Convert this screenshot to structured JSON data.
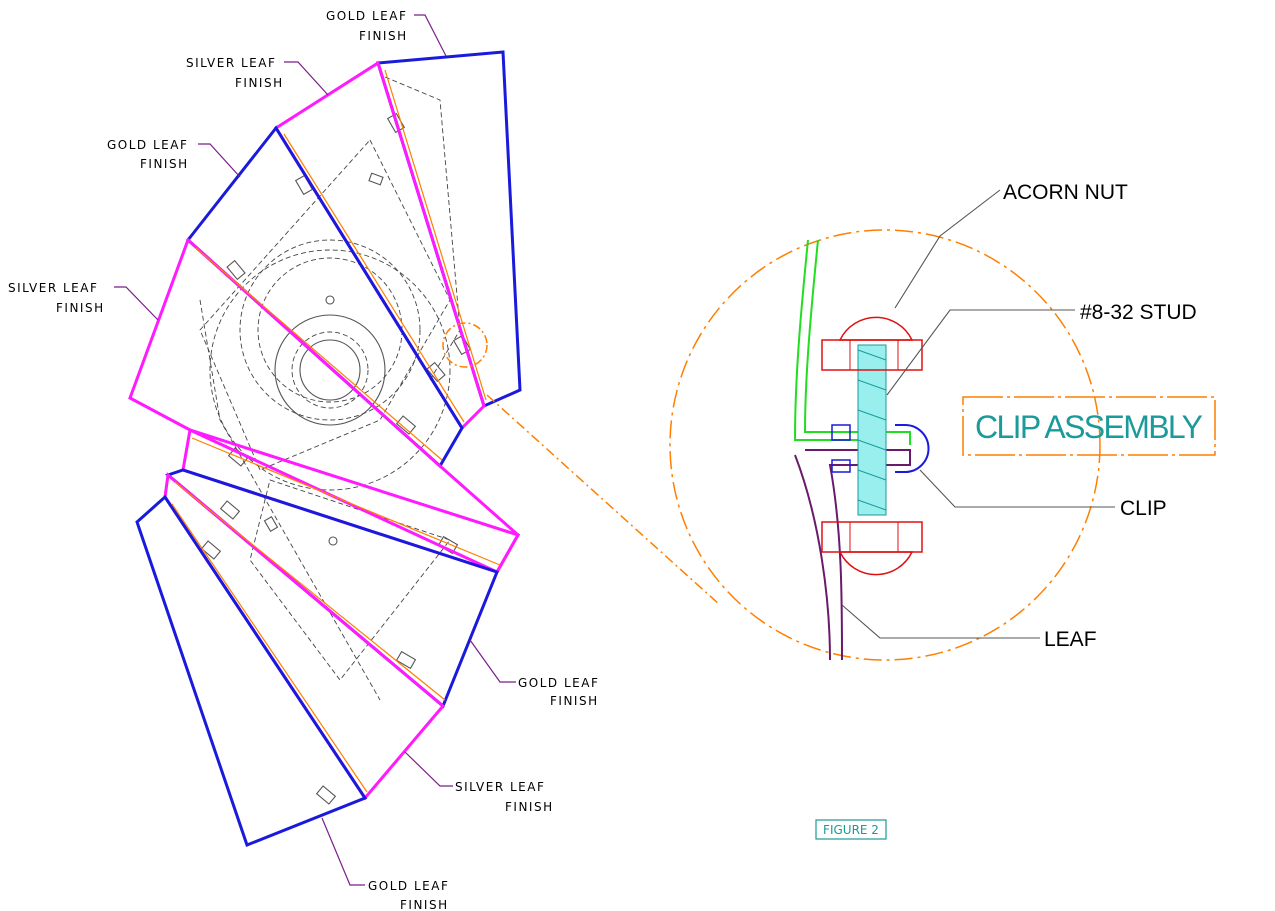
{
  "labels": [
    {
      "lines": [
        "GOLD LEAF",
        "FINISH"
      ]
    },
    {
      "lines": [
        "SILVER LEAF",
        "FINISH"
      ]
    },
    {
      "lines": [
        "GOLD LEAF",
        "FINISH"
      ]
    },
    {
      "lines": [
        "SILVER LEAF",
        "FINISH"
      ]
    },
    {
      "lines": [
        "GOLD LEAF",
        "FINISH"
      ]
    },
    {
      "lines": [
        "SILVER LEAF",
        "FINISH"
      ]
    },
    {
      "lines": [
        "GOLD LEAF",
        "FINISH"
      ]
    }
  ],
  "detail": {
    "callouts": [
      "ACORN NUT",
      "#8-32  STUD",
      "CLIP",
      "LEAF"
    ],
    "title": "CLIP ASSEMBLY"
  },
  "figure": "FIGURE 2"
}
